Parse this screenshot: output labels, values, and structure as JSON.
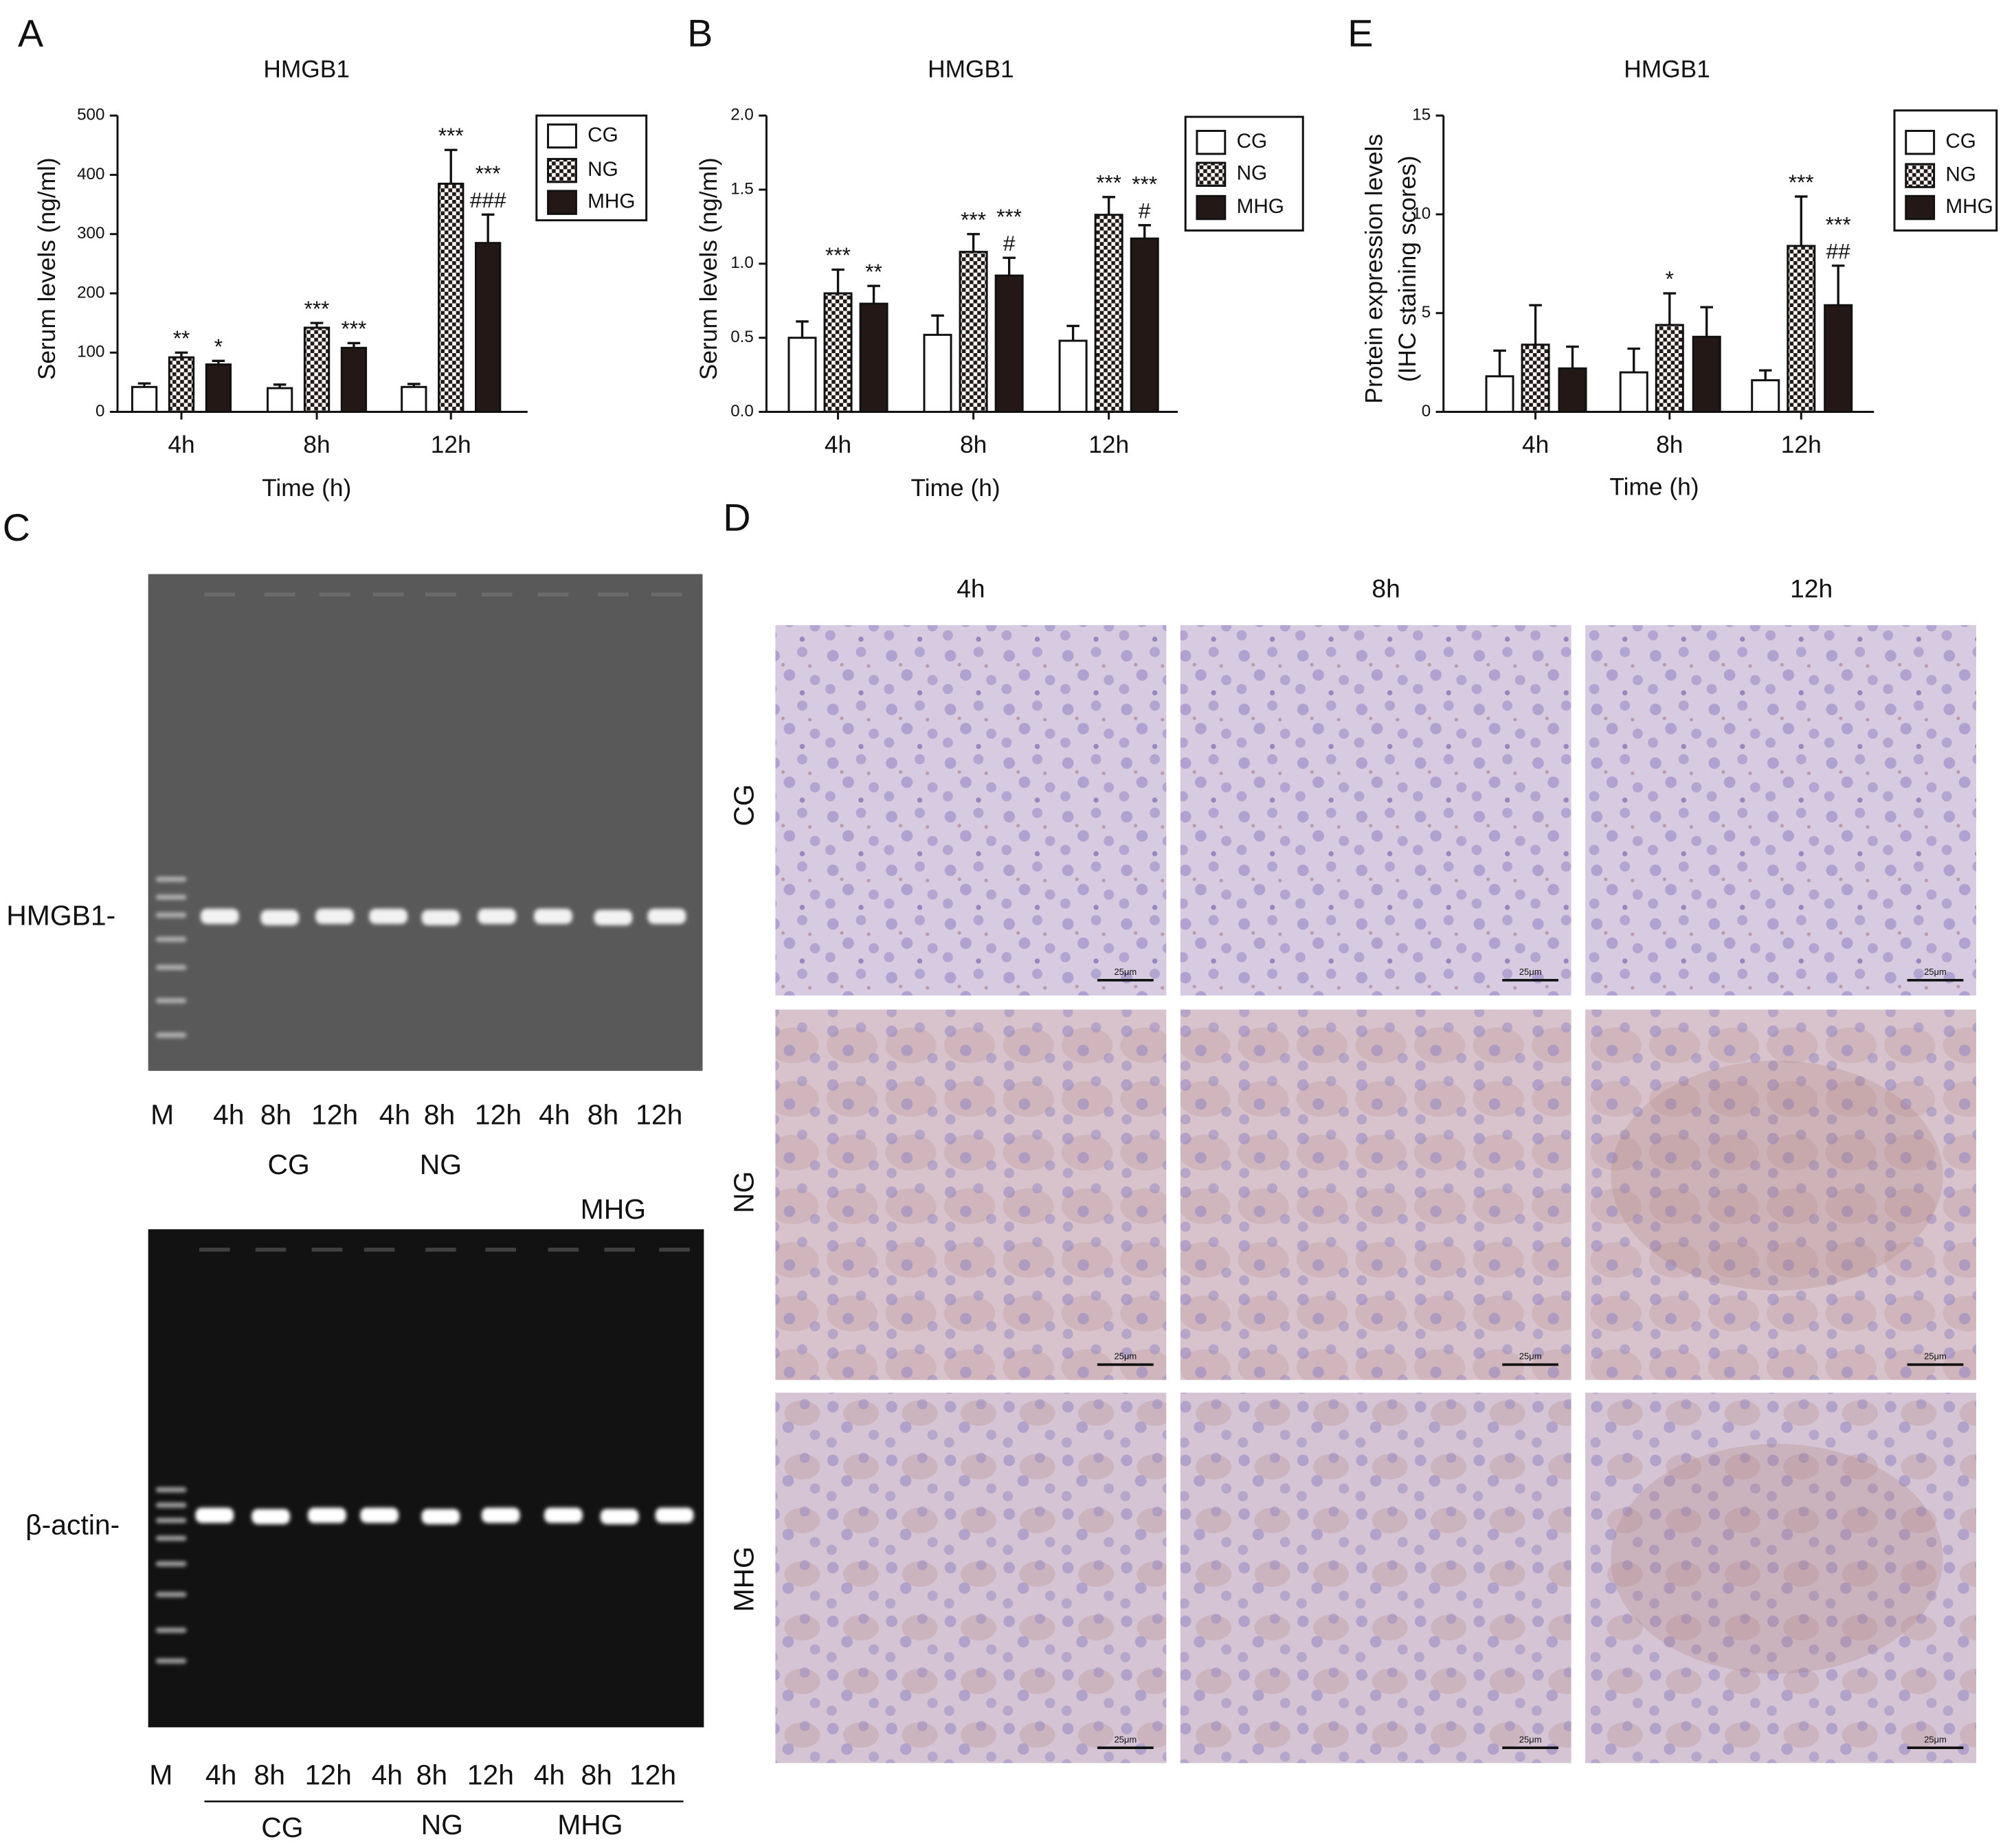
{
  "chart_data": [
    {
      "type": "bar",
      "panel_label": "A",
      "title": "HMGB1",
      "xlabel": "Time (h)",
      "ylabel": [
        "Serum levels (ng/ml)"
      ],
      "categories": [
        "4h",
        "8h",
        "12h"
      ],
      "series": [
        {
          "name": "CG",
          "color": "#ffffff",
          "values": [
            42,
            40,
            42
          ],
          "errors": [
            6,
            6,
            5
          ],
          "significance": [
            [],
            [],
            []
          ]
        },
        {
          "name": "NG",
          "color": "#231815",
          "pattern": "checker",
          "values": [
            92,
            142,
            385
          ],
          "errors": [
            8,
            8,
            57
          ],
          "significance": [
            [
              "**"
            ],
            [
              "***"
            ],
            [
              "***"
            ]
          ]
        },
        {
          "name": "MHG",
          "color": "#231815",
          "values": [
            80,
            108,
            285
          ],
          "errors": [
            6,
            8,
            48
          ],
          "significance": [
            [
              "*"
            ],
            [
              "***"
            ],
            [
              "***",
              "###"
            ]
          ]
        }
      ],
      "ylim": [
        0,
        500
      ],
      "yticks": [
        0,
        100,
        200,
        300,
        400,
        500
      ],
      "legend": "upper right"
    },
    {
      "type": "bar",
      "panel_label": "B",
      "title": "HMGB1",
      "xlabel": "Time (h)",
      "ylabel": [
        "Serum levels (ng/ml)"
      ],
      "categories": [
        "4h",
        "8h",
        "12h"
      ],
      "series": [
        {
          "name": "CG",
          "color": "#ffffff",
          "values": [
            0.5,
            0.52,
            0.48
          ],
          "errors": [
            0.11,
            0.13,
            0.1
          ],
          "significance": [
            [],
            [],
            []
          ]
        },
        {
          "name": "NG",
          "color": "#231815",
          "pattern": "checker",
          "values": [
            0.8,
            1.08,
            1.33
          ],
          "errors": [
            0.16,
            0.12,
            0.12
          ],
          "significance": [
            [
              "***"
            ],
            [
              "***"
            ],
            [
              "***"
            ]
          ]
        },
        {
          "name": "MHG",
          "color": "#231815",
          "values": [
            0.73,
            0.92,
            1.17
          ],
          "errors": [
            0.12,
            0.12,
            0.09
          ],
          "significance": [
            [
              "**"
            ],
            [
              "***",
              "#"
            ],
            [
              "***",
              "#"
            ]
          ]
        }
      ],
      "ylim": [
        0,
        2
      ],
      "yticks": [
        {
          "value": 0,
          "label": "0.0"
        },
        {
          "value": 0.5,
          "label": "0.5"
        },
        {
          "value": 1,
          "label": "1.0"
        },
        {
          "value": 1.5,
          "label": "1.5"
        },
        {
          "value": 2,
          "label": "2.0"
        }
      ],
      "legend": "upper right"
    },
    {
      "type": "bar",
      "panel_label": "E",
      "title": "HMGB1",
      "xlabel": "Time (h)",
      "ylabel": [
        "Protein expression levels",
        "(IHC staining scores)"
      ],
      "categories": [
        "4h",
        "8h",
        "12h"
      ],
      "series": [
        {
          "name": "CG",
          "color": "#ffffff",
          "values": [
            1.8,
            2.0,
            1.6
          ],
          "errors": [
            1.3,
            1.2,
            0.5
          ],
          "significance": [
            [],
            [],
            []
          ]
        },
        {
          "name": "NG",
          "color": "#231815",
          "pattern": "checker",
          "values": [
            3.4,
            4.4,
            8.4
          ],
          "errors": [
            2.0,
            1.6,
            2.5
          ],
          "significance": [
            [],
            [
              "*"
            ],
            [
              "***"
            ]
          ]
        },
        {
          "name": "MHG",
          "color": "#231815",
          "values": [
            2.2,
            3.8,
            5.4
          ],
          "errors": [
            1.1,
            1.5,
            2.0
          ],
          "significance": [
            [],
            [],
            [
              "***",
              "##"
            ]
          ]
        }
      ],
      "ylim": [
        0,
        15
      ],
      "yticks": [
        0,
        5,
        10,
        15
      ],
      "legend": "upper right"
    }
  ],
  "panel_c": {
    "label": "C",
    "lanes": [
      "M",
      "4h",
      "8h",
      "12h",
      "4h",
      "8h",
      "12h",
      "4h",
      "8h",
      "12h"
    ],
    "groups": [
      "CG",
      "NG",
      "MHG"
    ],
    "gels": [
      {
        "band_label": "HMGB1-"
      },
      {
        "band_label": "β-actin-"
      }
    ]
  },
  "panel_d": {
    "label": "D",
    "columns": [
      "4h",
      "8h",
      "12h"
    ],
    "rows": [
      "CG",
      "NG",
      "MHG"
    ],
    "scale_bar": "25μm"
  }
}
